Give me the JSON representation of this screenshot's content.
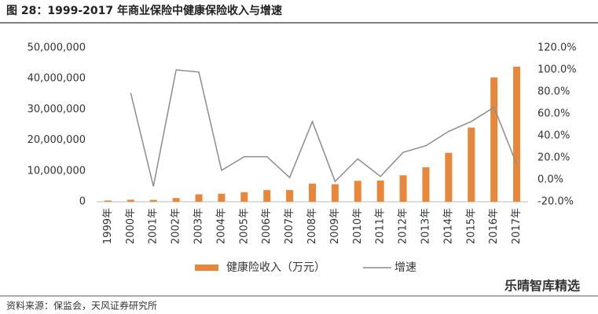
{
  "chart_data": {
    "type": "bar",
    "title": "图 28：1999-2017 年商业保险中健康保险收入与增速",
    "source": "资料来源：保监会，天风证券研究所",
    "watermark": "乐晴智库精选",
    "categories": [
      "1999年",
      "2000年",
      "2001年",
      "2002年",
      "2003年",
      "2004年",
      "2005年",
      "2006年",
      "2007年",
      "2008年",
      "2009年",
      "2010年",
      "2011年",
      "2012年",
      "2013年",
      "2014年",
      "2015年",
      "2016年",
      "2017年"
    ],
    "series": [
      {
        "name": "健康险收入（万元）",
        "type": "bar",
        "color": "#e8873a",
        "values": [
          400000,
          650000,
          600000,
          1200000,
          2400000,
          2600000,
          3100000,
          3800000,
          3800000,
          5900000,
          5700000,
          6800000,
          6900000,
          8600000,
          11200000,
          15900000,
          24100000,
          40400000,
          43900000
        ]
      },
      {
        "name": "增速",
        "type": "line",
        "axis": "y2",
        "color": "#8c8c8c",
        "values": [
          null,
          79,
          -6,
          100,
          98,
          8.6,
          21,
          21,
          2,
          53,
          -1.5,
          19,
          3,
          25,
          31,
          44,
          53,
          66,
          14
        ]
      }
    ],
    "ylim": [
      0,
      50000000
    ],
    "yticks": [
      0,
      {
        "value": 10000000,
        "label": "10,000,000"
      },
      {
        "value": 20000000,
        "label": "20,000,000"
      },
      {
        "value": 30000000,
        "label": "30,000,000"
      },
      {
        "value": 40000000,
        "label": "40,000,000"
      },
      {
        "value": 50000000,
        "label": "50,000,000"
      }
    ],
    "y2lim": [
      -20,
      120
    ],
    "y2ticks": [
      {
        "value": -20,
        "label": "-20.0%"
      },
      {
        "value": 0,
        "label": "0.0%"
      },
      {
        "value": 20,
        "label": "20.0%"
      },
      {
        "value": 40,
        "label": "40.0%"
      },
      {
        "value": 60,
        "label": "60.0%"
      },
      {
        "value": 80,
        "label": "80.0%"
      },
      {
        "value": 100,
        "label": "100.0%"
      },
      {
        "value": 120,
        "label": "120.0%"
      }
    ],
    "grid": false
  }
}
